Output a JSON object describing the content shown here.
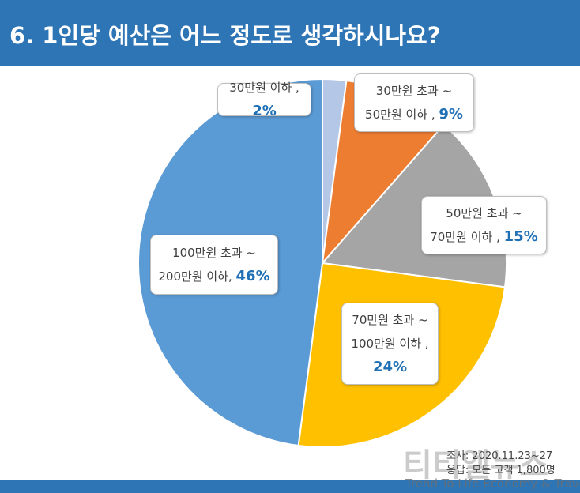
{
  "chart_data": {
    "type": "pie",
    "title": "6. 1인당 예산은 어느 정도로 생각하시나요?",
    "categories": [
      "30만원 이하 ,",
      "30만원 초과 ~\n50만원 이하 ,",
      "50만원 초과 ~\n70만원 이하 ,",
      "70만원 초과 ~\n100만원 이하 ,",
      "100만원 초과 ~\n200만원 이하,"
    ],
    "values": [
      2,
      9,
      15,
      24,
      46
    ],
    "value_labels": [
      "2%",
      "9%",
      "15%",
      "24%",
      "46%"
    ],
    "colors": [
      "#b4c7e7",
      "#ed7d31",
      "#a5a5a5",
      "#ffc000",
      "#5b9bd5"
    ],
    "source": [
      "조사: 2020.11.23~27",
      "응답: 모든 고객 1,800명"
    ],
    "watermark": {
      "name": "티티엘뉴스",
      "slogan": "Trend To Life Economy & Travel"
    }
  }
}
